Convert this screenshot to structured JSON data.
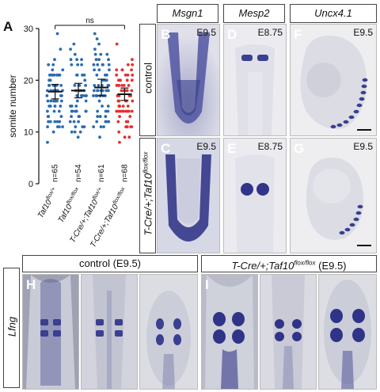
{
  "panelA": {
    "letter": "A",
    "ylabel": "somite number",
    "significance": "ns",
    "n_labels": [
      "n=65",
      "n=54",
      "n=61",
      "n=68"
    ]
  },
  "chart_data": {
    "type": "scatter",
    "ylabel": "somite number",
    "ylim": [
      0,
      30
    ],
    "yticks": [
      0,
      10,
      20,
      30
    ],
    "categories": [
      "Taf10flox/+",
      "Taf10flox/flox",
      "T-Cre/+;Taf10flox/+",
      "T-Cre/+;Taf10flox/flox"
    ],
    "category_parts": [
      {
        "main": "Taf10",
        "sup": "flox/+"
      },
      {
        "main": "Taf10",
        "sup": "flox/flox"
      },
      {
        "main": "T-Cre/+;Taf10",
        "sup": "flox/+"
      },
      {
        "main": "T-Cre/+;Taf10",
        "sup": "flox/flox"
      }
    ],
    "n": [
      65,
      54,
      61,
      68
    ],
    "means": [
      17.8,
      18.0,
      18.6,
      17.3
    ],
    "sem": [
      0.7,
      0.7,
      0.8,
      0.6
    ],
    "colors": [
      "#2b6cb0",
      "#2b6cb0",
      "#2b6cb0",
      "#e53030"
    ],
    "annotation": "ns"
  },
  "gene_headers": [
    "Msgn1",
    "Mesp2",
    "Uncx4.1"
  ],
  "row_labels": {
    "control": "control",
    "mutant_main": "T-Cre/+;Taf10",
    "mutant_sup": "flox/flox"
  },
  "panels": {
    "B": {
      "letter": "B",
      "stage": "E9.5"
    },
    "C": {
      "letter": "C",
      "stage": "E9.5"
    },
    "D": {
      "letter": "D",
      "stage": "E8.75"
    },
    "E": {
      "letter": "E",
      "stage": "E8.75"
    },
    "F": {
      "letter": "F",
      "stage": "E9.5"
    },
    "G": {
      "letter": "G",
      "stage": "E9.5"
    },
    "H": {
      "letter": "H"
    },
    "I": {
      "letter": "I"
    }
  },
  "bottom": {
    "gene": "Lfng",
    "control_header": "control (E9.5)",
    "mutant_header_main": "T-Cre/+;Taf10",
    "mutant_header_sup": "flox/flox",
    "mutant_header_tail": " (E9.5)"
  },
  "colors": {
    "stain": "#3a3f8f",
    "tissue": "#c9cbd6",
    "background": "#e6e6ea",
    "darkbg": "#6b6f80"
  }
}
